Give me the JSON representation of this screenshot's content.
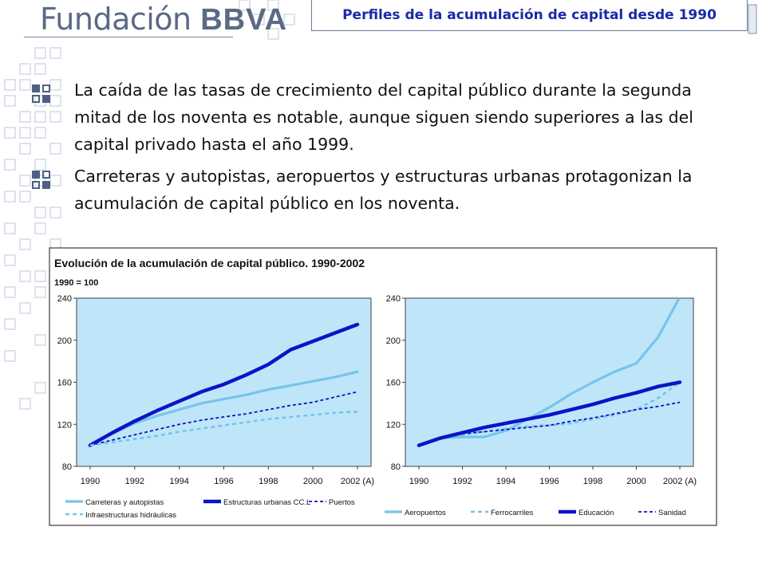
{
  "header": {
    "logo_text": "Fundación",
    "logo_brand": "BBVA",
    "title": "Perfiles de la acumulación de capital desde 1990"
  },
  "bullets": [
    "La caída de las tasas de crecimiento del capital público durante la segunda mitad de los noventa es notable, aunque siguen siendo superiores a las del capital privado hasta el año 1999.",
    "Carreteras y autopistas, aeropuertos y estructuras urbanas protagonizan la acumulación de capital público en los noventa."
  ],
  "colors": {
    "plot_bg": "#bfe6f8",
    "series_light": "#77c4ec",
    "series_dark": "#0a14c8",
    "pattern": "#dde3ec",
    "text": "#111111"
  },
  "chart_data": [
    {
      "type": "line",
      "title": "Evolución de la acumulación de capital público. 1990-2002",
      "subtitle": "1990 = 100",
      "x": [
        1990,
        1991,
        1992,
        1993,
        1994,
        1995,
        1996,
        1997,
        1998,
        1999,
        2000,
        2001,
        2002
      ],
      "xticklabels": [
        "1990",
        "1992",
        "1994",
        "1996",
        "1998",
        "2000",
        "2002 (A)"
      ],
      "ylim": [
        80,
        240
      ],
      "yticks": [
        80,
        120,
        160,
        200,
        240
      ],
      "grid": false,
      "legend_position": "bottom",
      "series": [
        {
          "name": "Carreteras y autopistas",
          "style": "light-solid",
          "values": [
            100,
            111,
            121,
            128,
            134,
            140,
            144,
            148,
            153,
            157,
            161,
            165,
            170
          ]
        },
        {
          "name": "Estructuras urbanas CC.L",
          "style": "dark-solid",
          "values": [
            100,
            112,
            123,
            133,
            142,
            151,
            158,
            167,
            177,
            191,
            199,
            207,
            215
          ]
        },
        {
          "name": "Puertos",
          "style": "dark-dash",
          "values": [
            100,
            105,
            110,
            115,
            120,
            124,
            127,
            130,
            134,
            138,
            141,
            146,
            151
          ]
        },
        {
          "name": "Infraestructuras hidráulicas",
          "style": "light-dash",
          "values": [
            100,
            103,
            106,
            109,
            113,
            116,
            119,
            122,
            125,
            127,
            129,
            131,
            132
          ]
        }
      ]
    },
    {
      "type": "line",
      "x": [
        1990,
        1991,
        1992,
        1993,
        1994,
        1995,
        1996,
        1997,
        1998,
        1999,
        2000,
        2001,
        2002
      ],
      "xticklabels": [
        "1990",
        "1992",
        "1994",
        "1996",
        "1998",
        "2000",
        "2002 (A)"
      ],
      "ylim": [
        80,
        240
      ],
      "yticks": [
        80,
        120,
        160,
        200,
        240
      ],
      "grid": false,
      "legend_position": "bottom",
      "series": [
        {
          "name": "Aeropuertos",
          "style": "light-solid",
          "values": [
            100,
            107,
            108,
            108,
            114,
            125,
            136,
            149,
            160,
            170,
            178,
            203,
            241
          ]
        },
        {
          "name": "Ferrocarriles",
          "style": "light-dash",
          "values": [
            100,
            106,
            110,
            113,
            116,
            118,
            119,
            121,
            125,
            129,
            134,
            145,
            160
          ]
        },
        {
          "name": "Educación",
          "style": "dark-solid",
          "values": [
            100,
            107,
            112,
            117,
            121,
            125,
            129,
            134,
            139,
            145,
            150,
            156,
            160
          ]
        },
        {
          "name": "Sanidad",
          "style": "dark-dash",
          "values": [
            100,
            107,
            111,
            113,
            115,
            117,
            119,
            123,
            126,
            130,
            134,
            137,
            141
          ]
        }
      ]
    }
  ]
}
